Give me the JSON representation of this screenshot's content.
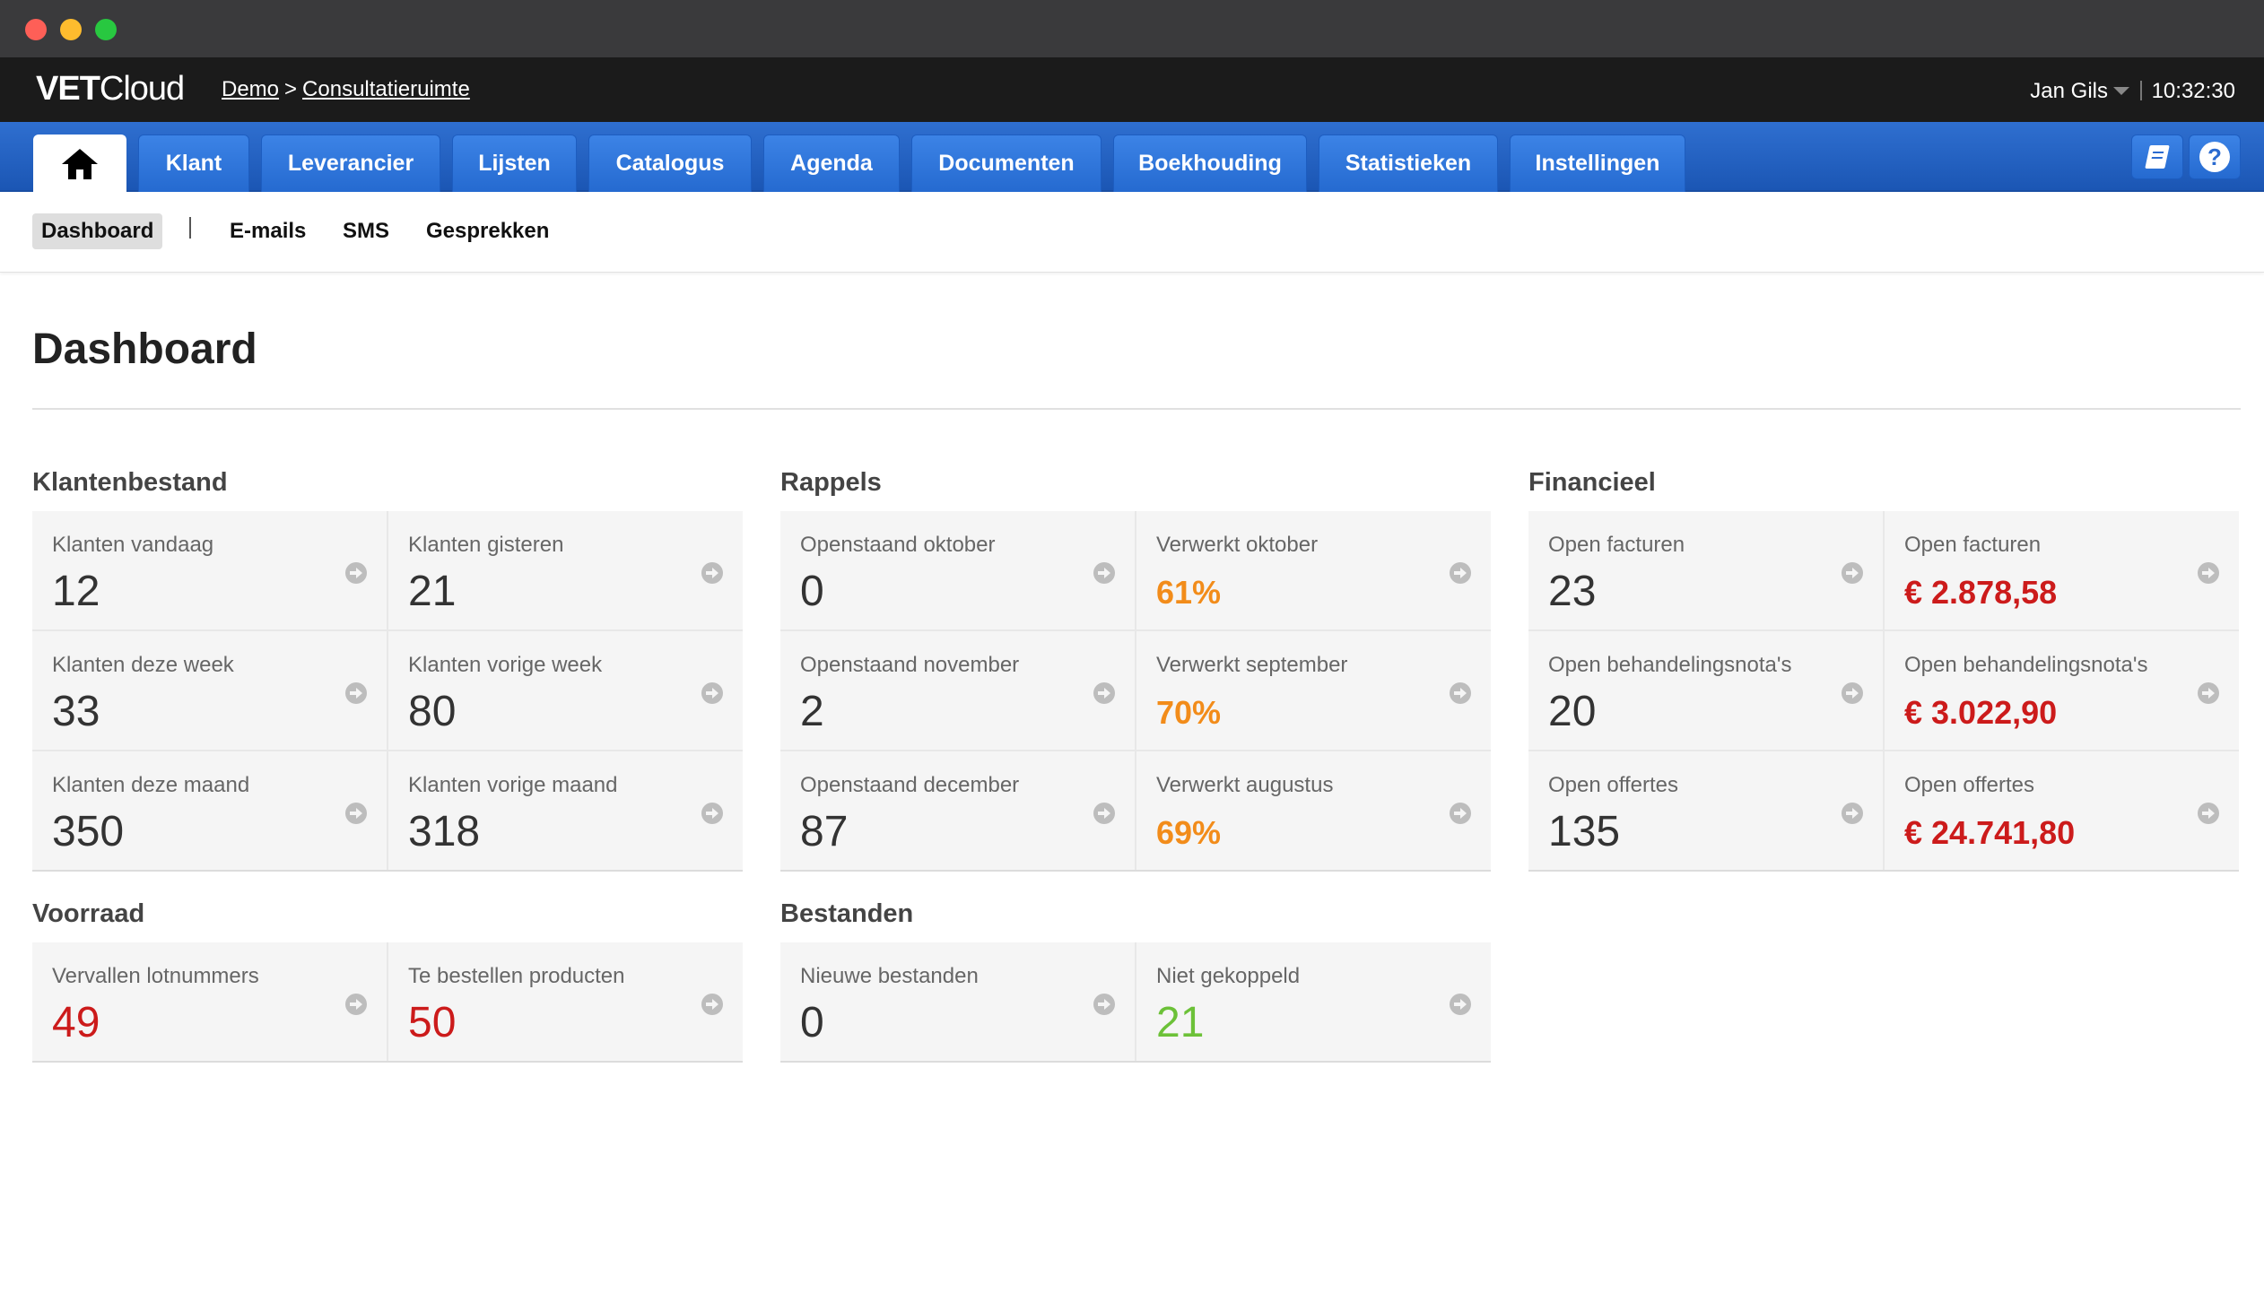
{
  "app": {
    "logo_bold": "VET",
    "logo_light": "Cloud",
    "breadcrumb": {
      "root": "Demo",
      "separator": ">",
      "current": "Consultatieruimte"
    },
    "user": "Jan Gils",
    "time": "10:32:30"
  },
  "nav": {
    "home_icon": "home-icon",
    "tabs": [
      "Klant",
      "Leverancier",
      "Lijsten",
      "Catalogus",
      "Agenda",
      "Documenten",
      "Boekhouding",
      "Statistieken",
      "Instellingen"
    ],
    "right_icons": [
      "book-icon",
      "help-icon"
    ],
    "help_glyph": "?"
  },
  "subnav": {
    "items": [
      "Dashboard",
      "E-mails",
      "SMS",
      "Gesprekken"
    ],
    "active": "Dashboard"
  },
  "page": {
    "title": "Dashboard"
  },
  "colors": {
    "accent_blue": "#256ad0",
    "red": "#cc1b1b",
    "orange": "#f28c1a",
    "green": "#6cc138"
  },
  "sections": {
    "klanten": {
      "title": "Klantenbestand",
      "cards": [
        {
          "label": "Klanten vandaag",
          "value": "12"
        },
        {
          "label": "Klanten gisteren",
          "value": "21"
        },
        {
          "label": "Klanten deze week",
          "value": "33"
        },
        {
          "label": "Klanten vorige week",
          "value": "80"
        },
        {
          "label": "Klanten deze maand",
          "value": "350"
        },
        {
          "label": "Klanten vorige maand",
          "value": "318"
        }
      ]
    },
    "rappels": {
      "title": "Rappels",
      "cards": [
        {
          "label": "Openstaand oktober",
          "value": "0"
        },
        {
          "label": "Verwerkt oktober",
          "value": "61%"
        },
        {
          "label": "Openstaand november",
          "value": "2"
        },
        {
          "label": "Verwerkt september",
          "value": "70%"
        },
        {
          "label": "Openstaand december",
          "value": "87"
        },
        {
          "label": "Verwerkt augustus",
          "value": "69%"
        }
      ]
    },
    "financieel": {
      "title": "Financieel",
      "cards": [
        {
          "label": "Open facturen",
          "value": "23"
        },
        {
          "label": "Open facturen",
          "value": "€ 2.878,58"
        },
        {
          "label": "Open behandelingsnota's",
          "value": "20"
        },
        {
          "label": "Open behandelingsnota's",
          "value": "€ 3.022,90"
        },
        {
          "label": "Open offertes",
          "value": "135"
        },
        {
          "label": "Open offertes",
          "value": "€ 24.741,80"
        }
      ]
    },
    "voorraad": {
      "title": "Voorraad",
      "cards": [
        {
          "label": "Vervallen lotnummers",
          "value": "49"
        },
        {
          "label": "Te bestellen producten",
          "value": "50"
        }
      ]
    },
    "bestanden": {
      "title": "Bestanden",
      "cards": [
        {
          "label": "Nieuwe bestanden",
          "value": "0"
        },
        {
          "label": "Niet gekoppeld",
          "value": "21"
        }
      ]
    }
  }
}
